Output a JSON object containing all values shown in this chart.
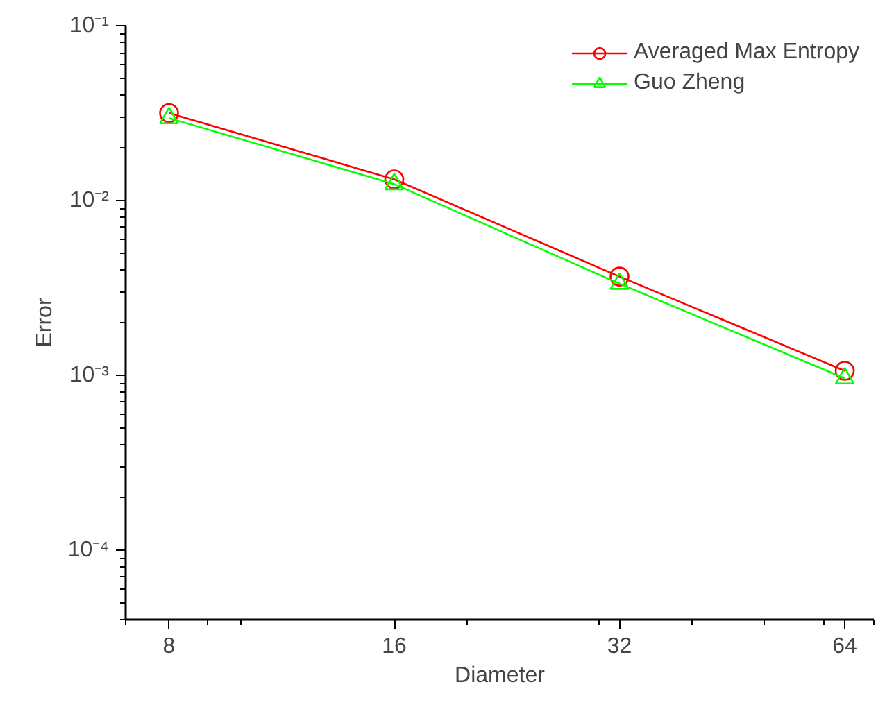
{
  "chart_data": {
    "type": "line",
    "xlabel": "Diameter",
    "ylabel": "Error",
    "log": "xy",
    "grid": false,
    "legend": "top right",
    "xlim": [
      7,
      70
    ],
    "xticks": [
      8,
      16,
      32,
      64
    ],
    "ylim": [
      4e-05,
      0.1
    ],
    "yticks": [
      {
        "value": 0.0001,
        "label": "10⁻⁴"
      },
      {
        "value": 0.001,
        "label": "10⁻³"
      },
      {
        "value": 0.01,
        "label": "10⁻²"
      },
      {
        "value": 0.1,
        "label": "10⁻¹"
      }
    ],
    "x": [
      8,
      16,
      32,
      64
    ],
    "series": [
      {
        "name": "Averaged Max Entropy",
        "color": "#ff0000",
        "marker": "circle",
        "values": [
          0.0316,
          0.0132,
          0.00367,
          0.00106
        ]
      },
      {
        "name": "Guo Zheng",
        "color": "#00ff00",
        "marker": "triangle",
        "values": [
          0.0296,
          0.0124,
          0.00334,
          0.00096
        ]
      }
    ]
  }
}
